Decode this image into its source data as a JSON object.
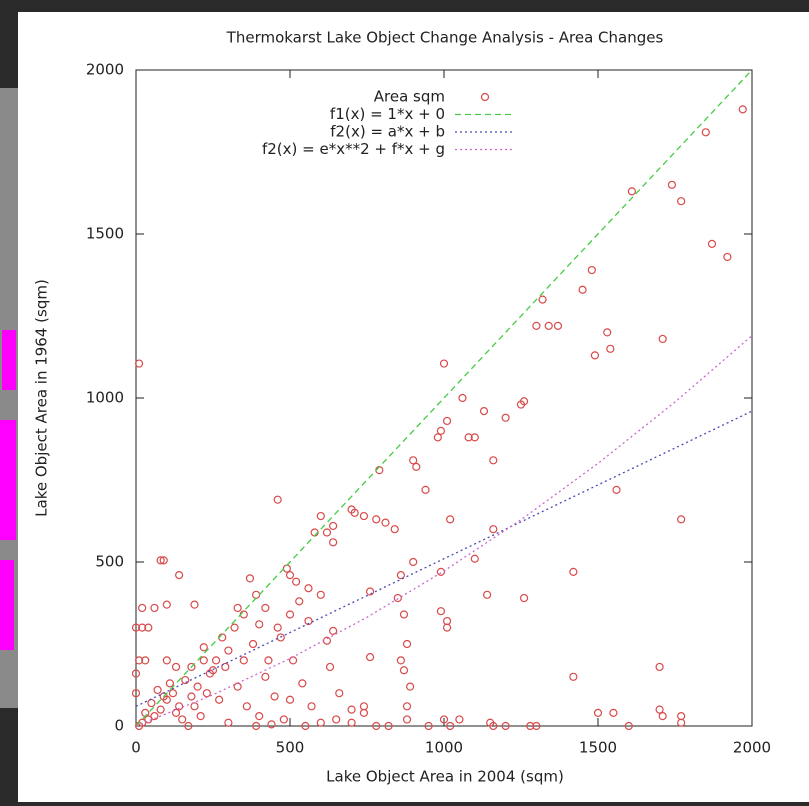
{
  "chart_data": {
    "type": "scatter",
    "title": "Thermokarst Lake Object Change Analysis - Area Changes",
    "x_label": "Lake Object Area in 2004 (sqm)",
    "y_label": "Lake Object Area in 1964 (sqm)",
    "xlim": [
      0,
      2000
    ],
    "ylim": [
      0,
      2000
    ],
    "xticks": [
      0,
      500,
      1000,
      1500,
      2000
    ],
    "yticks": [
      0,
      500,
      1000,
      1500,
      2000
    ],
    "legend": "top-right",
    "series": [
      {
        "name": "Area sqm",
        "color": "#d94a4a",
        "style": "points",
        "x": [
          10,
          0,
          20,
          40,
          80,
          90,
          20,
          60,
          100,
          140,
          190,
          330,
          370,
          390,
          460,
          490,
          500,
          520,
          560,
          580,
          600,
          620,
          640,
          640,
          700,
          710,
          740,
          780,
          790,
          810,
          840,
          900,
          910,
          940,
          980,
          990,
          1000,
          1010,
          1020,
          1060,
          1080,
          1100,
          1130,
          1160,
          1200,
          1250,
          1260,
          1300,
          1320,
          1340,
          1370,
          1450,
          1480,
          1530,
          1540,
          1490,
          1560,
          1610,
          1710,
          1740,
          1770,
          1850,
          1870,
          1920,
          1970,
          1770,
          1700,
          1700,
          1710,
          1770,
          1770,
          1500,
          1550,
          1420,
          1420,
          1260,
          1280,
          1160,
          1140,
          1100,
          990,
          990,
          1010,
          1010,
          1000,
          1050,
          1150,
          1160,
          900,
          860,
          850,
          870,
          880,
          860,
          870,
          890,
          880,
          880,
          760,
          760,
          740,
          740,
          700,
          640,
          620,
          600,
          560,
          530,
          500,
          460,
          420,
          400,
          380,
          350,
          320,
          300,
          290,
          260,
          240,
          220,
          200,
          180,
          160,
          140,
          120,
          100,
          80,
          60,
          40,
          20,
          10,
          30,
          50,
          70,
          90,
          110,
          130,
          150,
          170,
          190,
          210,
          230,
          250,
          270,
          300,
          330,
          360,
          390,
          420,
          450,
          480,
          510,
          540,
          570,
          600,
          630,
          660,
          700,
          780,
          820,
          950,
          1200,
          1300,
          1600,
          1020,
          470,
          430,
          350,
          280,
          220,
          180,
          10,
          30,
          0,
          0,
          100,
          130,
          400,
          440,
          500,
          550,
          650
        ],
        "values": [
          1105,
          300,
          300,
          300,
          505,
          505,
          360,
          360,
          370,
          460,
          370,
          360,
          450,
          400,
          690,
          480,
          460,
          440,
          420,
          590,
          640,
          590,
          560,
          610,
          660,
          650,
          640,
          630,
          780,
          620,
          600,
          810,
          790,
          720,
          880,
          900,
          1105,
          930,
          630,
          1000,
          880,
          880,
          960,
          810,
          940,
          980,
          990,
          1220,
          1300,
          1220,
          1220,
          1330,
          1390,
          1200,
          1150,
          1130,
          720,
          1630,
          1180,
          1650,
          1600,
          1810,
          1470,
          1430,
          1880,
          630,
          180,
          50,
          30,
          30,
          10,
          40,
          40,
          470,
          150,
          390,
          0,
          600,
          400,
          510,
          470,
          350,
          320,
          300,
          20,
          20,
          10,
          0,
          500,
          460,
          390,
          340,
          250,
          200,
          170,
          120,
          60,
          20,
          410,
          210,
          60,
          40,
          10,
          290,
          260,
          400,
          320,
          380,
          340,
          300,
          360,
          310,
          250,
          200,
          300,
          230,
          180,
          200,
          160,
          240,
          120,
          90,
          140,
          60,
          100,
          80,
          50,
          30,
          20,
          10,
          0,
          40,
          70,
          110,
          90,
          130,
          40,
          20,
          0,
          60,
          30,
          100,
          170,
          80,
          10,
          120,
          60,
          0,
          150,
          90,
          20,
          200,
          130,
          60,
          10,
          180,
          100,
          50,
          0,
          0,
          0,
          0,
          0,
          0,
          0,
          270,
          200,
          340,
          270,
          200,
          180,
          200,
          200,
          100,
          160,
          200,
          180,
          30,
          5,
          80,
          0,
          20
        ]
      },
      {
        "name": "f1(x) = 1*x + 0",
        "color": "#44cc44",
        "style": "dashed",
        "x": [
          0,
          2000
        ],
        "values": [
          0,
          2000
        ]
      },
      {
        "name": "f2(x) = a*x + b",
        "color": "#4a4ab8",
        "style": "dotted",
        "x": [
          0,
          250,
          500,
          750,
          1000,
          1250,
          1500,
          1750,
          2000
        ],
        "values": [
          60,
          172.5,
          285,
          397.5,
          510,
          622.5,
          735,
          847.5,
          960
        ]
      },
      {
        "name": "f2(x) = e*x**2 + f*x + g",
        "color": "#cc66cc",
        "style": "dotted",
        "x": [
          0,
          250,
          500,
          750,
          1000,
          1250,
          1500,
          1750,
          2000
        ],
        "values": [
          0,
          95.2,
          205.6,
          331.4,
          472.5,
          628.9,
          800.6,
          987.7,
          1190
        ]
      }
    ]
  }
}
